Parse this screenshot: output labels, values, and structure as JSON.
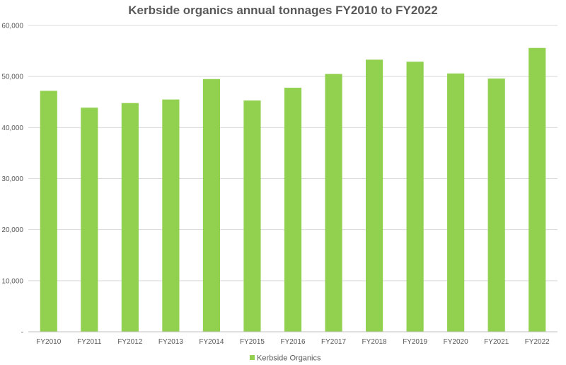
{
  "chart_data": {
    "type": "bar",
    "title": "Kerbside organics annual tonnages FY2010 to FY2022",
    "xlabel": "",
    "ylabel": "",
    "categories": [
      "FY2010",
      "FY2011",
      "FY2012",
      "FY2013",
      "FY2014",
      "FY2015",
      "FY2016",
      "FY2017",
      "FY2018",
      "FY2019",
      "FY2020",
      "FY2021",
      "FY2022"
    ],
    "series": [
      {
        "name": "Kerbside Organics",
        "color": "#92d050",
        "values": [
          47200,
          43900,
          44800,
          45500,
          49500,
          45300,
          47800,
          50500,
          53300,
          52900,
          50600,
          49600,
          55600
        ]
      }
    ],
    "ylim": [
      0,
      60000
    ],
    "yticks": [
      0,
      10000,
      20000,
      30000,
      40000,
      50000,
      60000
    ],
    "ytick_labels": [
      "-",
      "10,000",
      "20,000",
      "30,000",
      "40,000",
      "50,000",
      "60,000"
    ],
    "grid": true,
    "legend_position": "bottom"
  }
}
